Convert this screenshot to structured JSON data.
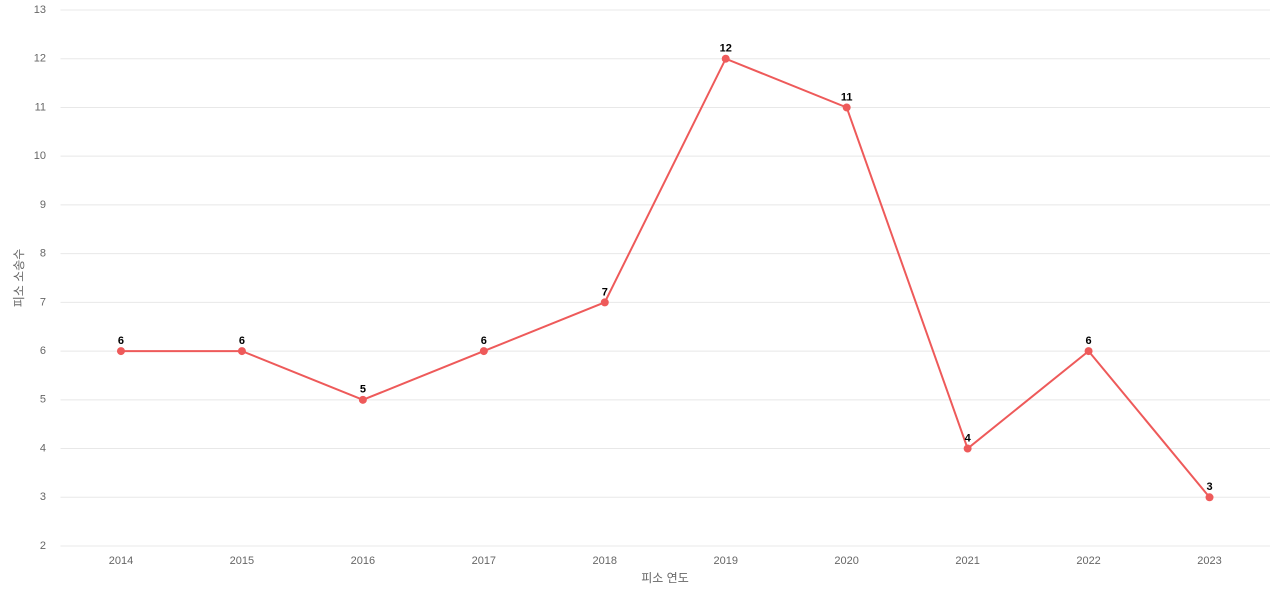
{
  "chart_data": {
    "type": "line",
    "x_label": "피소 연도",
    "y_label": "피소 소송수",
    "categories": [
      "2014",
      "2015",
      "2016",
      "2017",
      "2018",
      "2019",
      "2020",
      "2021",
      "2022",
      "2023"
    ],
    "series": [
      {
        "name": "피소 소송수",
        "color": "#ee5a5a",
        "values": [
          6,
          6,
          5,
          6,
          7,
          12,
          11,
          4,
          6,
          3
        ]
      }
    ],
    "ylim": [
      2,
      13
    ],
    "yticks": [
      2,
      3,
      4,
      5,
      6,
      7,
      8,
      9,
      10,
      11,
      12,
      13
    ],
    "grid": true,
    "data_labels": true
  }
}
